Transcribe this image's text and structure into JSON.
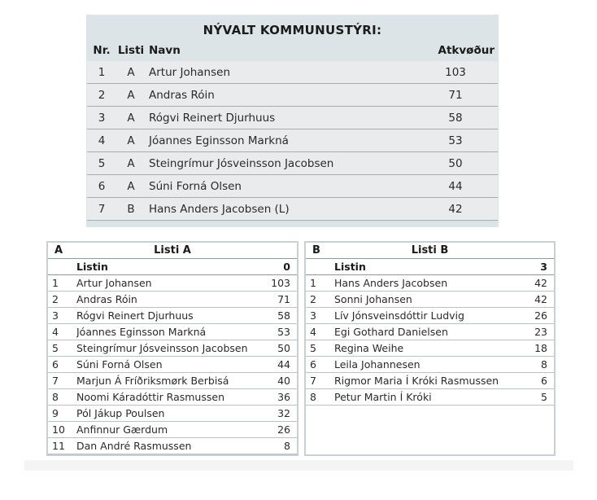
{
  "main_table": {
    "title": "NÝVALT KOMMUNUSTÝRI:",
    "headers": {
      "nr": "Nr.",
      "listi": "Listi",
      "navn": "Navn",
      "votes": "Atkvøður"
    },
    "rows": [
      {
        "nr": 1,
        "listi": "A",
        "navn": "Artur Johansen",
        "votes": 103
      },
      {
        "nr": 2,
        "listi": "A",
        "navn": "Andras Róin",
        "votes": 71
      },
      {
        "nr": 3,
        "listi": "A",
        "navn": "Rógvi Reinert Djurhuus",
        "votes": 58
      },
      {
        "nr": 4,
        "listi": "A",
        "navn": "Jóannes Eginsson Markná",
        "votes": 53
      },
      {
        "nr": 5,
        "listi": "A",
        "navn": "Steingrímur Jósveinsson Jacobsen",
        "votes": 50
      },
      {
        "nr": 6,
        "listi": "A",
        "navn": "Súni Forná Olsen",
        "votes": 44
      },
      {
        "nr": 7,
        "listi": "B",
        "navn": "Hans Anders Jacobsen (L)",
        "votes": 42
      }
    ]
  },
  "list_tables": [
    {
      "letter": "A",
      "title": "Listi A",
      "subheader_label": "Listin",
      "subheader_value": 0,
      "rows": [
        {
          "nr": 1,
          "name": "Artur Johansen",
          "votes": 103
        },
        {
          "nr": 2,
          "name": "Andras Róin",
          "votes": 71
        },
        {
          "nr": 3,
          "name": "Rógvi Reinert Djurhuus",
          "votes": 58
        },
        {
          "nr": 4,
          "name": "Jóannes Eginsson Markná",
          "votes": 53
        },
        {
          "nr": 5,
          "name": "Steingrímur Jósveinsson Jacobsen",
          "votes": 50
        },
        {
          "nr": 6,
          "name": "Súni Forná Olsen",
          "votes": 44
        },
        {
          "nr": 7,
          "name": "Marjun Á Fríðriksmørk Berbisá",
          "votes": 40
        },
        {
          "nr": 8,
          "name": "Noomi Káradóttir Rasmussen",
          "votes": 36
        },
        {
          "nr": 9,
          "name": "Pól Jákup Poulsen",
          "votes": 32
        },
        {
          "nr": 10,
          "name": "Anfinnur Gærdum",
          "votes": 26
        },
        {
          "nr": 11,
          "name": "Dan André Rasmussen",
          "votes": 8
        }
      ]
    },
    {
      "letter": "B",
      "title": "Listi B",
      "subheader_label": "Listin",
      "subheader_value": 3,
      "rows": [
        {
          "nr": 1,
          "name": "Hans Anders Jacobsen",
          "votes": 42
        },
        {
          "nr": 2,
          "name": "Sonni Johansen",
          "votes": 42
        },
        {
          "nr": 3,
          "name": "Lív Jónsveinsdóttir Ludvig",
          "votes": 26
        },
        {
          "nr": 4,
          "name": "Egi Gothard Danielsen",
          "votes": 23
        },
        {
          "nr": 5,
          "name": "Regina Weihe",
          "votes": 18
        },
        {
          "nr": 6,
          "name": "Leila Johannesen",
          "votes": 8
        },
        {
          "nr": 7,
          "name": "Rigmor Maria Í Króki Rasmussen",
          "votes": 6
        },
        {
          "nr": 8,
          "name": "Petur Martin Í Króki",
          "votes": 5
        }
      ]
    }
  ],
  "colors": {
    "panel_bg": "#dce4e8",
    "panel_row_bg": "#e9ebed",
    "table_border": "#c6d0d6",
    "header_rule": "#8f989e",
    "row_rule": "#bcc1c5"
  }
}
